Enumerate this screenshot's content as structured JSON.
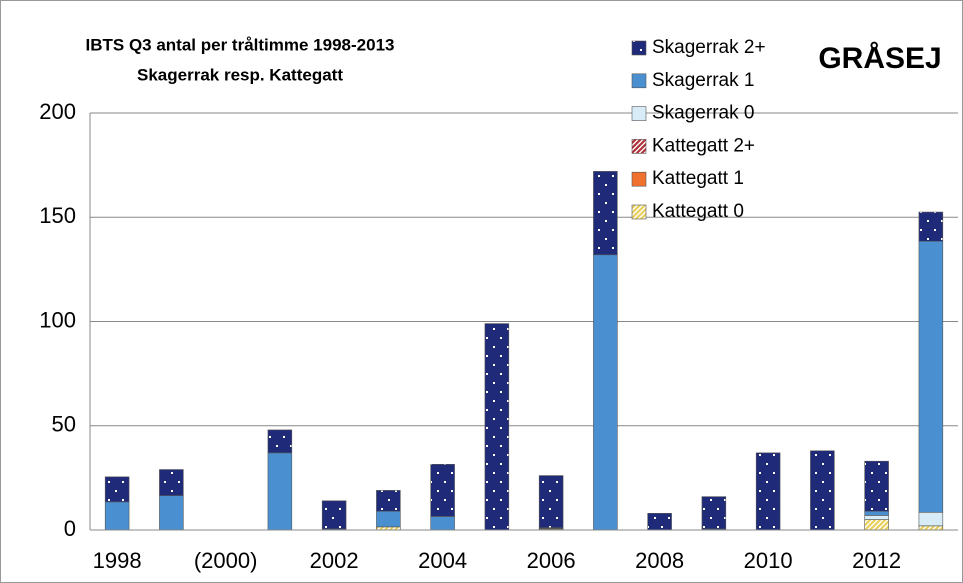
{
  "chart_data": {
    "type": "stacked_bar",
    "title": "IBTS Q3 antal per tråltimme 1998-2013",
    "subtitle": "Skagerrak resp. Kattegatt",
    "annotation": "GRÅSEJ",
    "categories": [
      "1998",
      null,
      "(2000)",
      null,
      "2002",
      null,
      "2004",
      null,
      "2006",
      null,
      "2008",
      null,
      "2010",
      null,
      "2012",
      null
    ],
    "series": [
      {
        "name": "Kattegatt 0",
        "color": "#e8cf5a",
        "pattern": "hatch",
        "values": [
          0,
          0,
          0,
          0,
          0,
          1.5,
          0,
          0,
          0.5,
          0,
          0,
          0,
          0,
          0,
          5,
          2
        ]
      },
      {
        "name": "Kattegatt 1",
        "color": "#f07030",
        "pattern": "solid",
        "values": [
          0,
          0,
          0,
          0,
          0,
          0,
          0,
          0,
          0.3,
          0,
          0,
          0,
          0,
          0,
          0,
          0
        ]
      },
      {
        "name": "Kattegatt 2+",
        "color": "#b0303a",
        "pattern": "hatch",
        "values": [
          0,
          0,
          0,
          0,
          0,
          0,
          0,
          0,
          0.3,
          0,
          0,
          0,
          0,
          0,
          0,
          0
        ]
      },
      {
        "name": "Skagerrak 0",
        "color": "#d8ecf8",
        "pattern": "solid",
        "values": [
          0,
          0,
          0,
          0,
          0,
          0,
          0,
          0,
          0,
          0,
          0,
          0,
          0,
          0,
          2,
          6.5
        ]
      },
      {
        "name": "Skagerrak 1",
        "color": "#4a90d0",
        "pattern": "solid",
        "values": [
          13.5,
          16.5,
          0,
          37,
          0.5,
          7.5,
          6.5,
          0,
          0,
          132,
          0,
          0.5,
          0,
          0,
          2,
          130
        ]
      },
      {
        "name": "Skagerrak 2+",
        "color": "#1f2a78",
        "pattern": "dots",
        "values": [
          12,
          12.5,
          0,
          11,
          13.5,
          10,
          25,
          99,
          25,
          40,
          8,
          15.5,
          37,
          38,
          24,
          14
        ]
      }
    ],
    "ylim": [
      0,
      200
    ],
    "yticks": [
      0,
      50,
      100,
      150,
      200
    ],
    "grid": true,
    "legend": "top-right"
  }
}
